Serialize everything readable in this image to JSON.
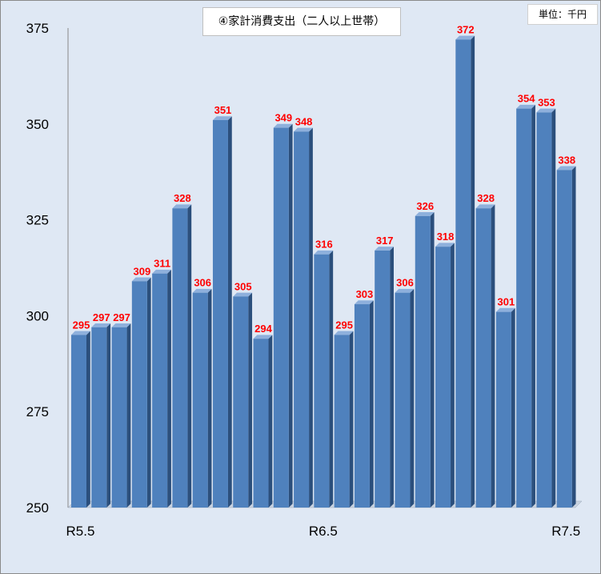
{
  "chart_data": {
    "type": "bar",
    "title": "④家計消費支出（二人以上世帯）",
    "unit": "単位：千円",
    "categories": [
      "R5.5",
      "",
      "",
      "",
      "",
      "",
      "",
      "",
      "",
      "",
      "",
      "",
      "R6.5",
      "",
      "",
      "",
      "",
      "",
      "",
      "",
      "",
      "",
      "",
      "",
      "R7.5"
    ],
    "values": [
      295,
      297,
      297,
      309,
      311,
      328,
      306,
      351,
      305,
      294,
      349,
      348,
      316,
      295,
      303,
      317,
      306,
      326,
      318,
      372,
      328,
      301,
      354,
      353,
      338
    ],
    "ylim": [
      250,
      375
    ],
    "yticks": [
      250,
      275,
      300,
      325,
      350,
      375
    ],
    "grid": false,
    "legend": "none",
    "colors": {
      "bar_front": "#4f81bd",
      "bar_side": "#2b4f7c",
      "bar_top": "#8eb0dc",
      "data_label": "#ff0000",
      "background": "#dfe8f4"
    }
  }
}
